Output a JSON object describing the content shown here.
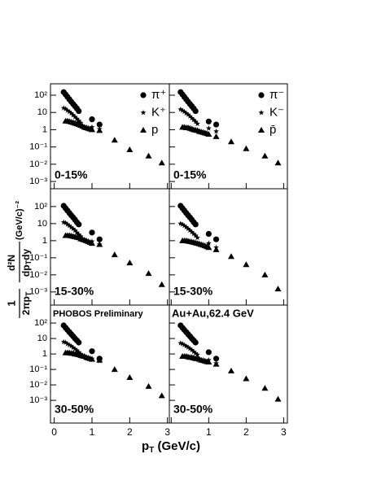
{
  "figure": {
    "xlabel": "p",
    "xlabel_sub": "T",
    "xlabel_unit": " (GeV/c)",
    "ylabel_num": "1",
    "ylabel_den": "2πp",
    "ylabel_den_sub": "T",
    "ylabel_num2": "d²N",
    "ylabel_den2": "dp",
    "ylabel_den2_sub": "T",
    "ylabel_den2_rest": "dy",
    "ylabel_unit": " (GeV/c)⁻²"
  },
  "chart_data": [
    {
      "type": "scatter",
      "log_y": true,
      "centrality": "0-15%",
      "xlim": [
        -0.1,
        3.05
      ],
      "ylim": [
        0.00038,
        457
      ],
      "xticks": [
        0,
        1,
        2,
        3
      ],
      "yticks": [
        {
          "value": 0.001,
          "label": "10⁻³"
        },
        {
          "value": 0.01,
          "label": "10⁻²"
        },
        {
          "value": 0.1,
          "label": "10⁻¹"
        },
        1,
        10,
        {
          "value": 100,
          "label": "10²"
        }
      ],
      "series": [
        {
          "name": "π⁺",
          "marker": "circle",
          "x": [
            0.25,
            0.3,
            0.35,
            0.4,
            0.45,
            0.5,
            0.55,
            0.6,
            0.65,
            1.0,
            1.2
          ],
          "values": [
            150,
            110,
            80,
            58,
            42,
            31,
            23,
            17,
            12,
            4,
            2
          ]
        },
        {
          "name": "K⁺",
          "marker": "star",
          "x": [
            0.25,
            0.3,
            0.35,
            0.4,
            0.45,
            0.5,
            0.55,
            0.6,
            0.65,
            0.7,
            1.0,
            1.2
          ],
          "values": [
            18,
            16,
            13,
            11,
            9,
            7,
            5.5,
            4.3,
            3.3,
            2.5,
            1.4,
            1.1
          ]
        },
        {
          "name": "p",
          "marker": "triangle",
          "x": [
            0.3,
            0.35,
            0.4,
            0.45,
            0.5,
            0.55,
            0.6,
            0.65,
            0.7,
            0.75,
            0.8,
            0.85,
            0.9,
            0.95,
            1.0,
            1.2,
            1.6,
            2.0,
            2.5,
            2.85
          ],
          "values": [
            3.2,
            3.2,
            3.0,
            2.8,
            2.6,
            2.4,
            2.2,
            2.0,
            1.8,
            1.6,
            1.4,
            1.3,
            1.2,
            1.1,
            1.0,
            0.9,
            0.25,
            0.07,
            0.03,
            0.012
          ]
        }
      ]
    },
    {
      "type": "scatter",
      "log_y": true,
      "centrality": "0-15%",
      "xlim": [
        -0.05,
        3.1
      ],
      "ylim": [
        0.00038,
        457
      ],
      "xticks": [
        0,
        1,
        2,
        3
      ],
      "yticks": [
        {
          "value": 0.001,
          "label": "10⁻³"
        },
        {
          "value": 0.01,
          "label": "10⁻²"
        },
        {
          "value": 0.1,
          "label": "10⁻¹"
        },
        1,
        10,
        {
          "value": 100,
          "label": "10²"
        }
      ],
      "series": [
        {
          "name": "π⁻",
          "marker": "circle",
          "x": [
            0.25,
            0.3,
            0.35,
            0.4,
            0.45,
            0.5,
            0.55,
            0.6,
            0.65,
            1.0,
            1.2
          ],
          "values": [
            150,
            110,
            80,
            58,
            42,
            31,
            23,
            17,
            12,
            3,
            2
          ]
        },
        {
          "name": "K⁻",
          "marker": "star",
          "x": [
            0.25,
            0.3,
            0.35,
            0.4,
            0.45,
            0.5,
            0.55,
            0.6,
            0.65,
            0.7,
            1.0,
            1.2
          ],
          "values": [
            15,
            13,
            11,
            9,
            7.5,
            6,
            4.7,
            3.7,
            2.9,
            2.2,
            1.2,
            0.8
          ]
        },
        {
          "name": "p̄",
          "marker": "triangle",
          "x": [
            0.3,
            0.35,
            0.4,
            0.45,
            0.5,
            0.55,
            0.6,
            0.65,
            0.7,
            0.75,
            0.8,
            0.85,
            0.9,
            0.95,
            1.0,
            1.2,
            1.6,
            2.0,
            2.5,
            2.85
          ],
          "values": [
            1.4,
            1.4,
            1.3,
            1.3,
            1.2,
            1.1,
            1.0,
            0.95,
            0.9,
            0.8,
            0.75,
            0.7,
            0.65,
            0.6,
            0.55,
            0.4,
            0.2,
            0.08,
            0.03,
            0.012
          ]
        }
      ]
    },
    {
      "type": "scatter",
      "log_y": true,
      "centrality": "15-30%",
      "xlim": [
        -0.1,
        3.05
      ],
      "ylim": [
        0.00017,
        1100
      ],
      "xticks": [
        0,
        1,
        2,
        3
      ],
      "yticks": [
        {
          "value": 0.001,
          "label": "10⁻³"
        },
        {
          "value": 0.01,
          "label": "10⁻²"
        },
        {
          "value": 0.1,
          "label": "10⁻¹"
        },
        1,
        10,
        {
          "value": 100,
          "label": "10²"
        }
      ],
      "series": [
        {
          "marker": "circle",
          "x": [
            0.25,
            0.3,
            0.35,
            0.4,
            0.45,
            0.5,
            0.55,
            0.6,
            0.65,
            1.0,
            1.2
          ],
          "values": [
            110,
            80,
            58,
            42,
            31,
            23,
            17,
            12,
            9,
            3,
            1.2
          ]
        },
        {
          "marker": "star",
          "x": [
            0.25,
            0.3,
            0.35,
            0.4,
            0.45,
            0.5,
            0.55,
            0.6,
            0.65,
            0.7,
            1.0,
            1.2
          ],
          "values": [
            12,
            11,
            9,
            7.5,
            6,
            5,
            4,
            3,
            2.3,
            1.8,
            0.9,
            0.6
          ]
        },
        {
          "marker": "triangle",
          "x": [
            0.3,
            0.35,
            0.4,
            0.45,
            0.5,
            0.55,
            0.6,
            0.65,
            0.7,
            0.75,
            0.8,
            0.85,
            0.9,
            0.95,
            1.0,
            1.2,
            1.6,
            2.0,
            2.5,
            2.85
          ],
          "values": [
            2,
            2,
            2,
            1.9,
            1.8,
            1.7,
            1.6,
            1.5,
            1.3,
            1.2,
            1.1,
            1.0,
            0.9,
            0.8,
            0.7,
            0.6,
            0.15,
            0.05,
            0.012,
            0.0027
          ]
        }
      ]
    },
    {
      "type": "scatter",
      "log_y": true,
      "centrality": "15-30%",
      "xlim": [
        -0.05,
        3.1
      ],
      "ylim": [
        0.00017,
        1100
      ],
      "xticks": [
        0,
        1,
        2,
        3
      ],
      "yticks": [
        {
          "value": 0.001,
          "label": "10⁻³"
        },
        {
          "value": 0.01,
          "label": "10⁻²"
        },
        {
          "value": 0.1,
          "label": "10⁻¹"
        },
        1,
        10,
        {
          "value": 100,
          "label": "10²"
        }
      ],
      "series": [
        {
          "marker": "circle",
          "x": [
            0.25,
            0.3,
            0.35,
            0.4,
            0.45,
            0.5,
            0.55,
            0.6,
            0.65,
            1.0,
            1.2
          ],
          "values": [
            110,
            80,
            58,
            42,
            31,
            23,
            17,
            12,
            9,
            2.5,
            1.2
          ]
        },
        {
          "marker": "star",
          "x": [
            0.25,
            0.3,
            0.35,
            0.4,
            0.45,
            0.5,
            0.55,
            0.6,
            0.65,
            0.7,
            1.0,
            1.2
          ],
          "values": [
            10,
            9,
            7.5,
            6.2,
            5,
            4,
            3.2,
            2.5,
            2,
            1.5,
            0.7,
            0.4
          ]
        },
        {
          "marker": "triangle",
          "x": [
            0.3,
            0.35,
            0.4,
            0.45,
            0.5,
            0.55,
            0.6,
            0.65,
            0.7,
            0.75,
            0.8,
            0.85,
            0.9,
            0.95,
            1.0,
            1.2,
            1.6,
            2.0,
            2.5,
            2.85
          ],
          "values": [
            1.0,
            1.0,
            1.0,
            0.95,
            0.9,
            0.85,
            0.8,
            0.75,
            0.7,
            0.65,
            0.6,
            0.55,
            0.5,
            0.45,
            0.4,
            0.3,
            0.12,
            0.04,
            0.01,
            0.0015
          ]
        }
      ]
    },
    {
      "type": "scatter",
      "log_y": true,
      "centrality": "30-50%",
      "annotation": "PHOBOS Preliminary",
      "xlim": [
        -0.1,
        3.05
      ],
      "ylim": [
        3.4e-05,
        1450
      ],
      "xticks": [
        0,
        1,
        2,
        3
      ],
      "yticks": [
        {
          "value": 0.001,
          "label": "10⁻³"
        },
        {
          "value": 0.01,
          "label": "10⁻²"
        },
        {
          "value": 0.1,
          "label": "10⁻¹"
        },
        1,
        10,
        {
          "value": 100,
          "label": "10²"
        }
      ],
      "series": [
        {
          "marker": "circle",
          "x": [
            0.25,
            0.3,
            0.35,
            0.4,
            0.45,
            0.5,
            0.55,
            0.6,
            0.65,
            1.0,
            1.2
          ],
          "values": [
            70,
            50,
            36,
            26,
            19,
            14,
            10,
            7.5,
            5.5,
            1.5,
            0.5
          ]
        },
        {
          "marker": "star",
          "x": [
            0.25,
            0.3,
            0.35,
            0.4,
            0.45,
            0.5,
            0.55,
            0.6,
            0.65,
            0.7,
            1.0,
            1.2
          ],
          "values": [
            6,
            5.5,
            4.5,
            3.8,
            3.2,
            2.6,
            2.1,
            1.7,
            1.3,
            1,
            0.5,
            0.35
          ]
        },
        {
          "marker": "triangle",
          "x": [
            0.3,
            0.35,
            0.4,
            0.45,
            0.5,
            0.55,
            0.6,
            0.65,
            0.7,
            0.75,
            0.8,
            0.85,
            0.9,
            0.95,
            1.0,
            1.2,
            1.6,
            2.0,
            2.5,
            2.85
          ],
          "values": [
            1.2,
            1.2,
            1.2,
            1.1,
            1.1,
            1.0,
            0.95,
            0.9,
            0.8,
            0.75,
            0.7,
            0.6,
            0.55,
            0.5,
            0.45,
            0.4,
            0.1,
            0.03,
            0.008,
            0.002
          ]
        }
      ]
    },
    {
      "type": "scatter",
      "log_y": true,
      "centrality": "30-50%",
      "annotation": "Au+Au,62.4 GeV",
      "xlim": [
        -0.05,
        3.1
      ],
      "ylim": [
        3.4e-05,
        1450
      ],
      "xticks": [
        0,
        1,
        2,
        3
      ],
      "yticks": [
        {
          "value": 0.001,
          "label": "10⁻³"
        },
        {
          "value": 0.01,
          "label": "10⁻²"
        },
        {
          "value": 0.1,
          "label": "10⁻¹"
        },
        1,
        10,
        {
          "value": 100,
          "label": "10²"
        }
      ],
      "series": [
        {
          "marker": "circle",
          "x": [
            0.25,
            0.3,
            0.35,
            0.4,
            0.45,
            0.5,
            0.55,
            0.6,
            0.65,
            1.0,
            1.2
          ],
          "values": [
            70,
            50,
            36,
            26,
            19,
            14,
            10,
            7.5,
            5.5,
            1.3,
            0.5
          ]
        },
        {
          "marker": "star",
          "x": [
            0.25,
            0.3,
            0.35,
            0.4,
            0.45,
            0.5,
            0.55,
            0.6,
            0.65,
            0.7,
            1.0,
            1.2
          ],
          "values": [
            5,
            4.5,
            3.8,
            3.2,
            2.7,
            2.2,
            1.8,
            1.4,
            1.1,
            0.9,
            0.4,
            0.25
          ]
        },
        {
          "marker": "triangle",
          "x": [
            0.3,
            0.35,
            0.4,
            0.45,
            0.5,
            0.55,
            0.6,
            0.65,
            0.7,
            0.75,
            0.8,
            0.85,
            0.9,
            0.95,
            1.0,
            1.2,
            1.6,
            2.0,
            2.5,
            2.85
          ],
          "values": [
            0.7,
            0.7,
            0.7,
            0.65,
            0.6,
            0.6,
            0.55,
            0.5,
            0.5,
            0.45,
            0.4,
            0.38,
            0.35,
            0.32,
            0.3,
            0.22,
            0.08,
            0.025,
            0.006,
            0.0012
          ]
        }
      ]
    }
  ]
}
